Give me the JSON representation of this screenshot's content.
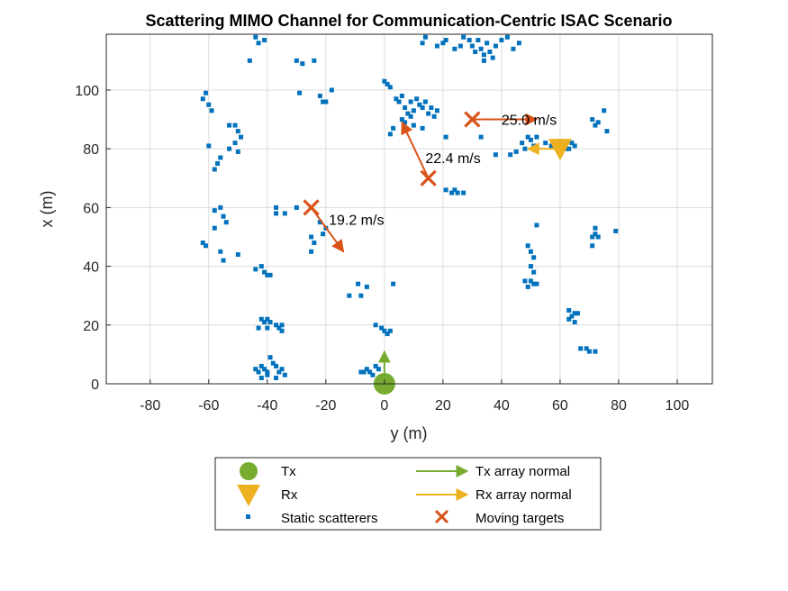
{
  "chart_data": {
    "type": "scatter",
    "title": "Scattering MIMO Channel for Communication-Centric ISAC Scenario",
    "xlabel": "y (m)",
    "ylabel": "x (m)",
    "xlim": [
      -95,
      112
    ],
    "ylim": [
      0,
      119
    ],
    "xticks": [
      -80,
      -60,
      -40,
      -20,
      0,
      20,
      40,
      60,
      80,
      100
    ],
    "yticks": [
      0,
      20,
      40,
      60,
      80,
      100
    ],
    "grid": true,
    "legend_position": "below",
    "colors": {
      "tx": "#77ac30",
      "rx": "#edb120",
      "scatterers": "#0072bd",
      "targets": "#d95319"
    },
    "tx": {
      "y": 0,
      "x": 0,
      "normal": [
        0,
        11
      ]
    },
    "rx": {
      "y": 60,
      "x": 80,
      "normal": [
        -11,
        0
      ]
    },
    "moving_targets": [
      {
        "y": -25,
        "x": 60,
        "vel": [
          11,
          -15
        ],
        "label": "19.2 m/s",
        "label_pos": [
          -19,
          56
        ]
      },
      {
        "y": 15,
        "x": 70,
        "vel": [
          -9,
          19
        ],
        "label": "22.4 m/s",
        "label_pos": [
          14,
          77
        ]
      },
      {
        "y": 30,
        "x": 90,
        "vel": [
          22,
          0
        ],
        "label": "25.0 m/s",
        "label_pos": [
          40,
          90
        ]
      }
    ],
    "legend": {
      "tx": "Tx",
      "rx": "Rx",
      "scatterers": "Static scatterers",
      "tx_normal": "Tx array normal",
      "rx_normal": "Rx array normal",
      "targets": "Moving targets"
    },
    "scatterers": [
      [
        -44,
        118
      ],
      [
        -43,
        116
      ],
      [
        -41,
        117
      ],
      [
        -46,
        110
      ],
      [
        -30,
        110
      ],
      [
        -28,
        109
      ],
      [
        -24,
        110
      ],
      [
        -62,
        97
      ],
      [
        -61,
        99
      ],
      [
        -60,
        95
      ],
      [
        -59,
        93
      ],
      [
        -53,
        88
      ],
      [
        -51,
        88
      ],
      [
        -50,
        86
      ],
      [
        -49,
        84
      ],
      [
        -51,
        82
      ],
      [
        -53,
        80
      ],
      [
        -56,
        77
      ],
      [
        -57,
        75
      ],
      [
        -58,
        73
      ],
      [
        -60,
        81
      ],
      [
        -50,
        79
      ],
      [
        -29,
        99
      ],
      [
        -22,
        98
      ],
      [
        -21,
        96
      ],
      [
        -20,
        96
      ],
      [
        -18,
        100
      ],
      [
        -58,
        59
      ],
      [
        -56,
        60
      ],
      [
        -55,
        57
      ],
      [
        -54,
        55
      ],
      [
        -58,
        53
      ],
      [
        -62,
        48
      ],
      [
        -61,
        47
      ],
      [
        -56,
        45
      ],
      [
        -55,
        42
      ],
      [
        -50,
        44
      ],
      [
        -37,
        60
      ],
      [
        -37,
        58
      ],
      [
        -34,
        58
      ],
      [
        -30,
        60
      ],
      [
        -22,
        55
      ],
      [
        -20,
        53
      ],
      [
        -21,
        51
      ],
      [
        -25,
        50
      ],
      [
        -24,
        48
      ],
      [
        -25,
        45
      ],
      [
        -44,
        39
      ],
      [
        -42,
        40
      ],
      [
        -41,
        38
      ],
      [
        -40,
        37
      ],
      [
        -39,
        37
      ],
      [
        -12,
        30
      ],
      [
        -9,
        34
      ],
      [
        -8,
        30
      ],
      [
        -6,
        33
      ],
      [
        3,
        34
      ],
      [
        -42,
        22
      ],
      [
        -41,
        21
      ],
      [
        -40,
        22
      ],
      [
        -39,
        21
      ],
      [
        -37,
        20
      ],
      [
        -36,
        19
      ],
      [
        -35,
        20
      ],
      [
        -35,
        18
      ],
      [
        -40,
        19
      ],
      [
        -43,
        19
      ],
      [
        -44,
        5
      ],
      [
        -43,
        4
      ],
      [
        -42,
        6
      ],
      [
        -41,
        5
      ],
      [
        -40,
        4
      ],
      [
        -39,
        9
      ],
      [
        -38,
        7
      ],
      [
        -37,
        6
      ],
      [
        -36,
        4
      ],
      [
        -37,
        2
      ],
      [
        -35,
        5
      ],
      [
        -34,
        3
      ],
      [
        -40,
        3
      ],
      [
        -42,
        2
      ],
      [
        -8,
        4
      ],
      [
        -7,
        4
      ],
      [
        -6,
        5
      ],
      [
        -5,
        4
      ],
      [
        -4,
        3
      ],
      [
        -3,
        6
      ],
      [
        -2,
        5
      ],
      [
        -3,
        20
      ],
      [
        -1,
        19
      ],
      [
        0,
        18
      ],
      [
        1,
        17
      ],
      [
        2,
        18
      ],
      [
        0,
        103
      ],
      [
        1,
        102
      ],
      [
        2,
        101
      ],
      [
        4,
        97
      ],
      [
        5,
        96
      ],
      [
        6,
        98
      ],
      [
        7,
        94
      ],
      [
        8,
        92
      ],
      [
        9,
        96
      ],
      [
        10,
        93
      ],
      [
        11,
        97
      ],
      [
        12,
        95
      ],
      [
        13,
        94
      ],
      [
        14,
        96
      ],
      [
        15,
        92
      ],
      [
        16,
        94
      ],
      [
        17,
        91
      ],
      [
        18,
        93
      ],
      [
        6,
        90
      ],
      [
        7,
        89
      ],
      [
        9,
        91
      ],
      [
        3,
        87
      ],
      [
        2,
        85
      ],
      [
        10,
        88
      ],
      [
        13,
        87
      ],
      [
        13,
        116
      ],
      [
        14,
        118
      ],
      [
        18,
        115
      ],
      [
        20,
        116
      ],
      [
        21,
        117
      ],
      [
        24,
        114
      ],
      [
        26,
        115
      ],
      [
        27,
        118
      ],
      [
        29,
        117
      ],
      [
        30,
        115
      ],
      [
        31,
        113
      ],
      [
        32,
        117
      ],
      [
        33,
        114
      ],
      [
        34,
        112
      ],
      [
        35,
        116
      ],
      [
        36,
        113
      ],
      [
        38,
        115
      ],
      [
        40,
        117
      ],
      [
        42,
        118
      ],
      [
        44,
        114
      ],
      [
        46,
        116
      ],
      [
        37,
        111
      ],
      [
        34,
        110
      ],
      [
        21,
        84
      ],
      [
        33,
        84
      ],
      [
        38,
        78
      ],
      [
        43,
        78
      ],
      [
        45,
        79
      ],
      [
        47,
        82
      ],
      [
        48,
        80
      ],
      [
        49,
        84
      ],
      [
        50,
        83
      ],
      [
        51,
        81
      ],
      [
        52,
        84
      ],
      [
        55,
        82
      ],
      [
        57,
        81
      ],
      [
        60,
        82
      ],
      [
        61,
        81
      ],
      [
        62,
        80
      ],
      [
        63,
        80
      ],
      [
        64,
        82
      ],
      [
        65,
        81
      ],
      [
        21,
        66
      ],
      [
        23,
        65
      ],
      [
        24,
        66
      ],
      [
        25,
        65
      ],
      [
        27,
        65
      ],
      [
        49,
        47
      ],
      [
        50,
        45
      ],
      [
        50,
        40
      ],
      [
        51,
        43
      ],
      [
        52,
        54
      ],
      [
        51,
        38
      ],
      [
        48,
        35
      ],
      [
        49,
        33
      ],
      [
        50,
        35
      ],
      [
        51,
        34
      ],
      [
        52,
        34
      ],
      [
        71,
        90
      ],
      [
        72,
        88
      ],
      [
        73,
        89
      ],
      [
        75,
        93
      ],
      [
        76,
        86
      ],
      [
        71,
        50
      ],
      [
        72,
        53
      ],
      [
        72,
        51
      ],
      [
        73,
        50
      ],
      [
        71,
        47
      ],
      [
        79,
        52
      ],
      [
        63,
        25
      ],
      [
        64,
        23
      ],
      [
        65,
        24
      ],
      [
        66,
        24
      ],
      [
        63,
        22
      ],
      [
        65,
        21
      ],
      [
        67,
        12
      ],
      [
        69,
        12
      ],
      [
        70,
        11
      ],
      [
        72,
        11
      ]
    ]
  }
}
